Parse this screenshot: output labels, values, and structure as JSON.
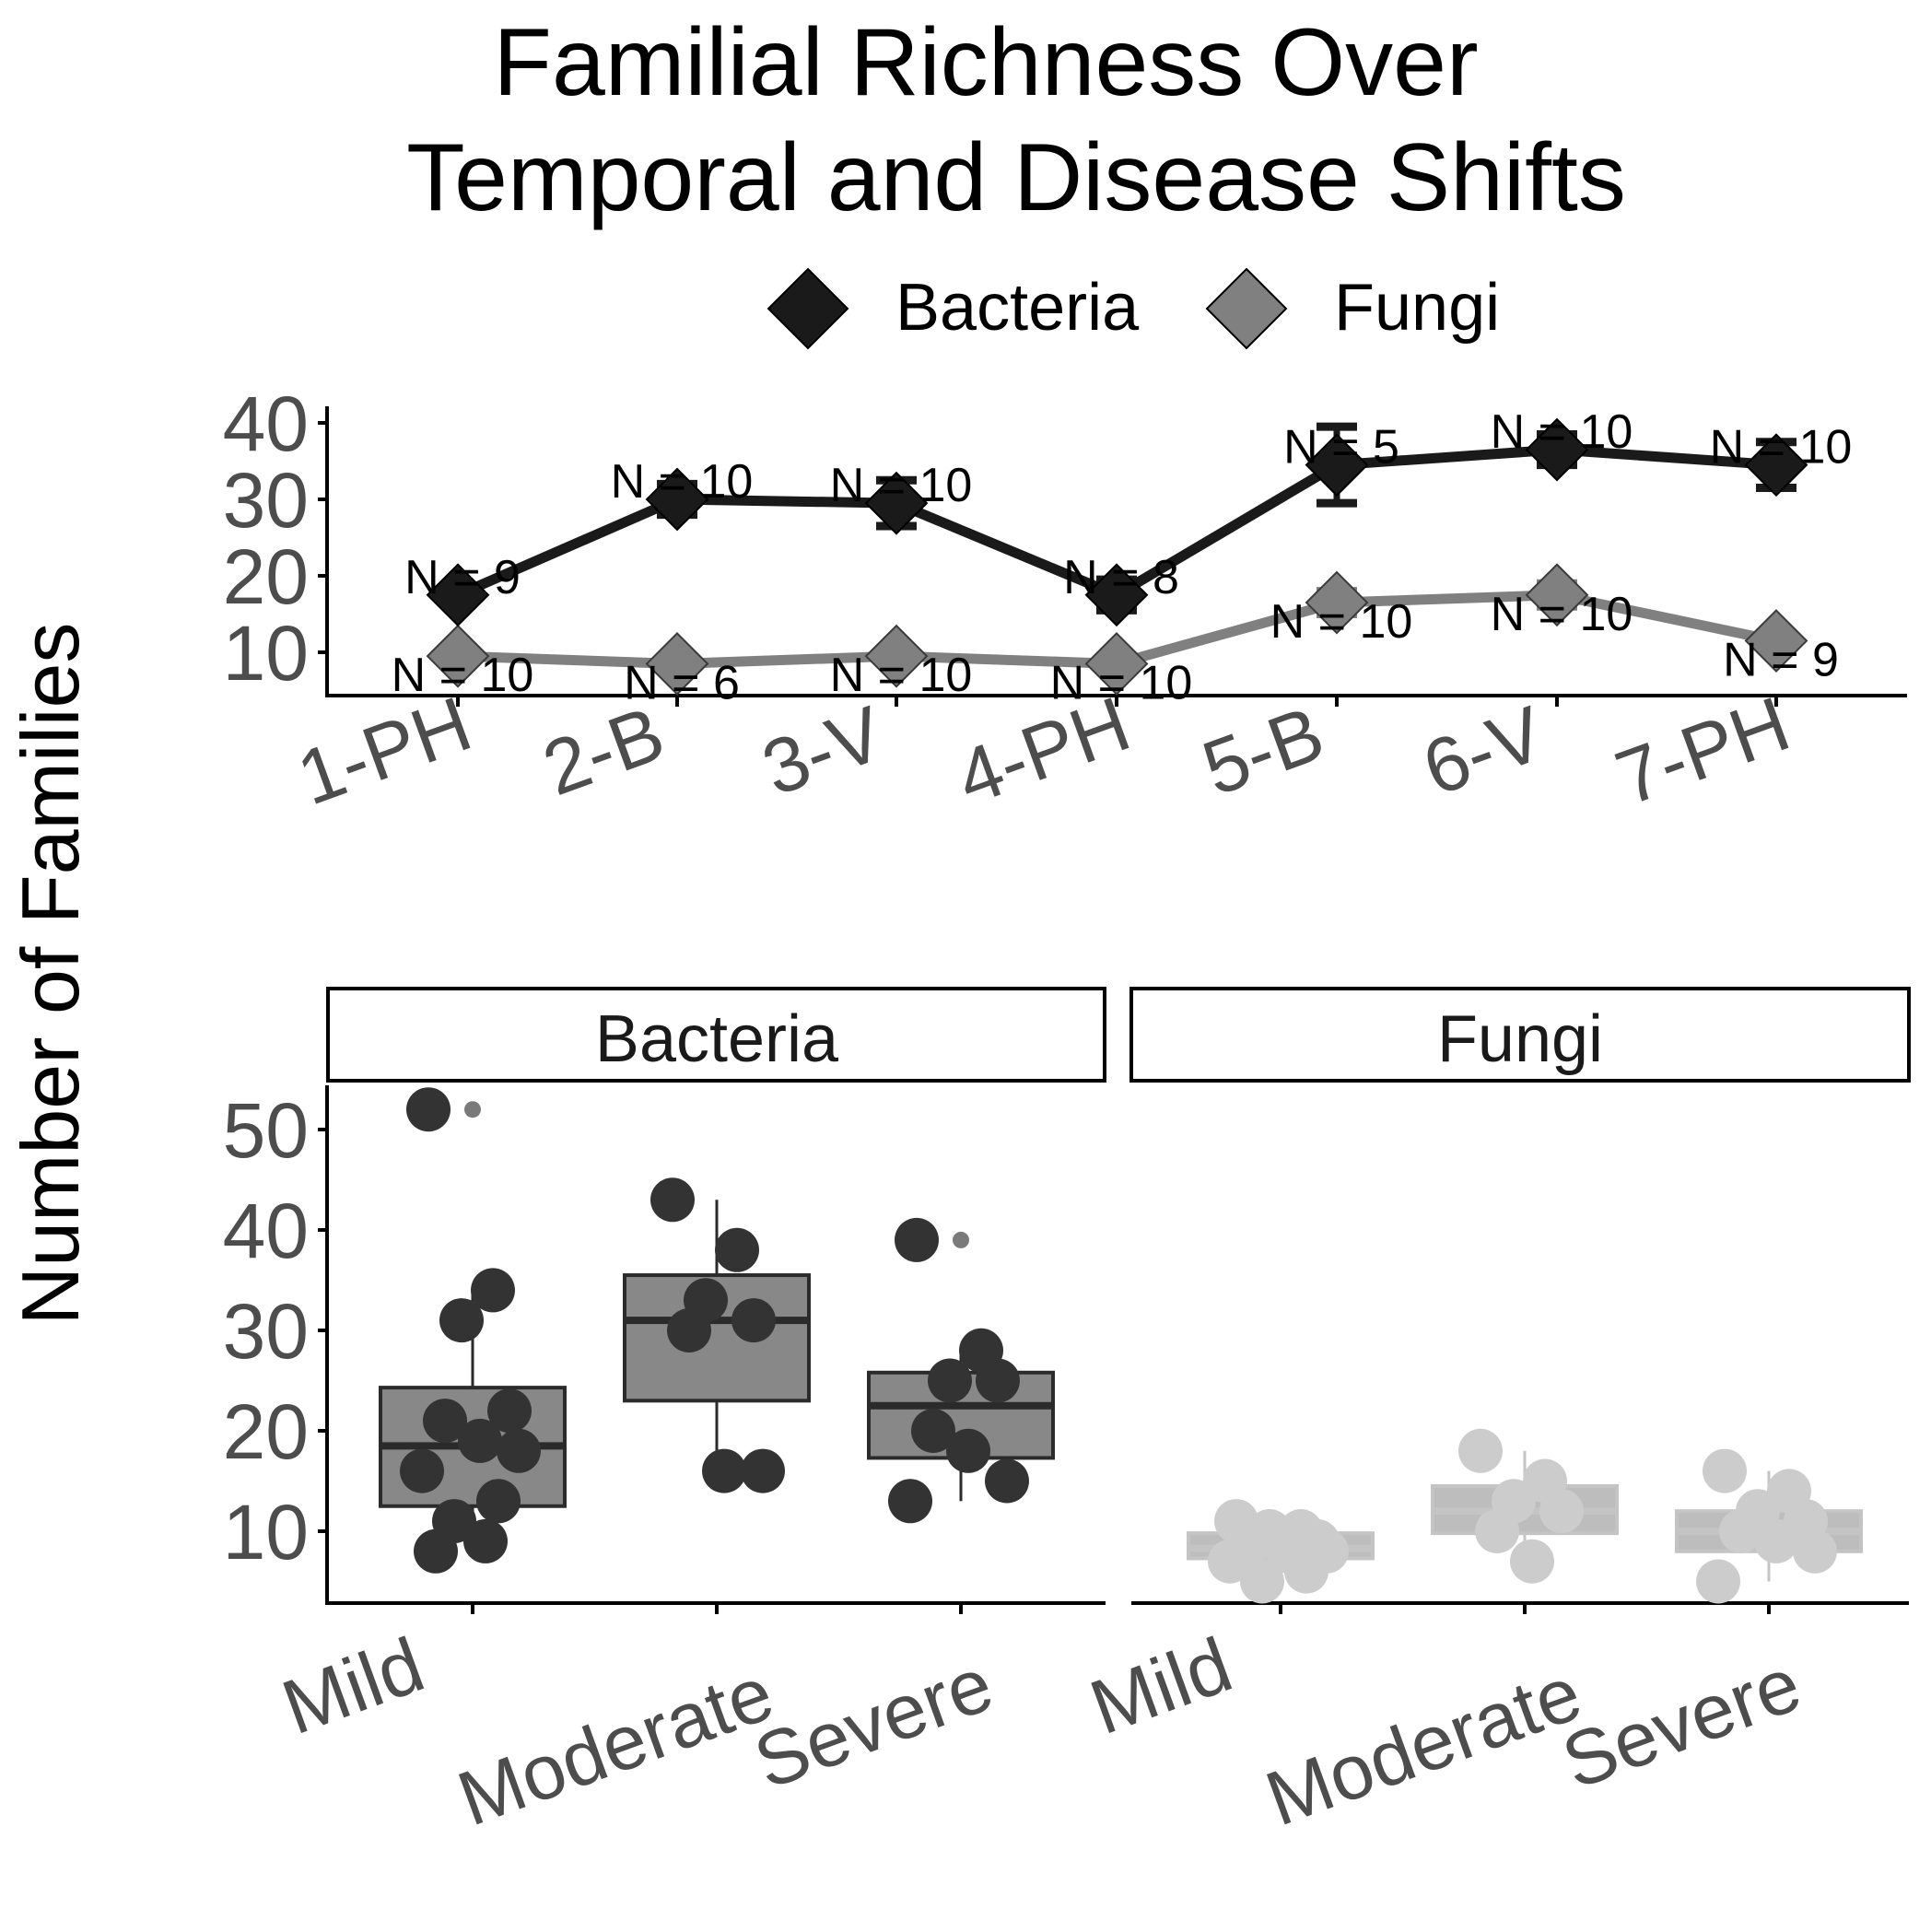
{
  "title_lines": [
    "Familial Richness Over",
    "Temporal and Disease Shifts"
  ],
  "y_label": "Number of Families",
  "legend": [
    {
      "name": "Bacteria",
      "color": "#1a1a1a"
    },
    {
      "name": "Fungi",
      "color": "#808080"
    }
  ],
  "colors": {
    "bacteria_line": "#1a1a1a",
    "fungi_line": "#808080",
    "bacteria_box": "#888888",
    "bacteria_points": "#333333",
    "fungi_box": "#bdbdbd",
    "fungi_points": "#cccccc",
    "tick_text": "#4d4d4d"
  },
  "chart_data": [
    {
      "type": "line",
      "categories": [
        "1-PH",
        "2-B",
        "3-V",
        "4-PH",
        "5-B",
        "6-V",
        "7-PH"
      ],
      "ylim": [
        4.5,
        41
      ],
      "yticks": [
        10,
        20,
        30,
        40
      ],
      "series": [
        {
          "name": "Bacteria",
          "values": [
            17.5,
            30,
            29.5,
            17.5,
            34.5,
            36.5,
            34.5
          ],
          "err_low": [
            16.5,
            28,
            26.5,
            15.5,
            29.5,
            34.5,
            31.5
          ],
          "err_high": [
            18.5,
            32,
            32.5,
            19.5,
            39.5,
            38.5,
            37.5
          ],
          "labels": [
            "N = 9",
            "N = 10",
            "N = 10",
            "N = 8",
            "N = 5",
            "N = 10",
            "N = 10"
          ]
        },
        {
          "name": "Fungi",
          "values": [
            9.5,
            8.5,
            9.5,
            8.5,
            16.5,
            17.5,
            11.5
          ],
          "err_low": [
            9,
            8,
            9,
            7.5,
            15,
            16,
            10.5
          ],
          "err_high": [
            10,
            9,
            10,
            9.5,
            18,
            19,
            12.5
          ],
          "labels": [
            "N = 10",
            "N = 6",
            "N = 10",
            "N = 10",
            "N = 10",
            "N = 10",
            "N = 9"
          ]
        }
      ]
    },
    {
      "type": "box",
      "facets": [
        "Bacteria",
        "Fungi"
      ],
      "categories": [
        "Mild",
        "Moderate",
        "Severe"
      ],
      "ylim": [
        2.5,
        54
      ],
      "yticks": [
        10,
        20,
        30,
        40,
        50
      ],
      "boxes": {
        "Bacteria": [
          {
            "q1": 12.5,
            "median": 18.5,
            "q3": 24.3,
            "whisker_low": 8,
            "whisker_high": 34,
            "outliers": [
              52
            ],
            "points": [
              52,
              34,
              31,
              22,
              21,
              19,
              18,
              16,
              13,
              11,
              9,
              8
            ]
          },
          {
            "q1": 23,
            "median": 31,
            "q3": 35.5,
            "whisker_low": 16,
            "whisker_high": 43,
            "outliers": [],
            "points": [
              43,
              38,
              33,
              31,
              30,
              16,
              16
            ]
          },
          {
            "q1": 17.3,
            "median": 22.5,
            "q3": 25.8,
            "whisker_low": 13,
            "whisker_high": 28,
            "outliers": [
              39
            ],
            "points": [
              39,
              28,
              25,
              25,
              20,
              18,
              15,
              13
            ]
          }
        ],
        "Fungi": [
          {
            "q1": 7.3,
            "median": 8.3,
            "q3": 9.8,
            "whisker_low": 5,
            "whisker_high": 11,
            "outliers": [],
            "points": [
              11,
              10,
              10,
              9,
              9,
              8,
              8,
              7,
              6,
              5
            ]
          },
          {
            "q1": 9.8,
            "median": 12,
            "q3": 14.5,
            "whisker_low": 7,
            "whisker_high": 18,
            "outliers": [],
            "points": [
              18,
              15,
              13,
              12,
              10,
              7
            ]
          },
          {
            "q1": 8,
            "median": 10,
            "q3": 12,
            "whisker_low": 5,
            "whisker_high": 16,
            "outliers": [],
            "points": [
              16,
              14,
              12,
              11,
              10,
              9,
              8,
              5
            ]
          }
        ]
      }
    }
  ]
}
